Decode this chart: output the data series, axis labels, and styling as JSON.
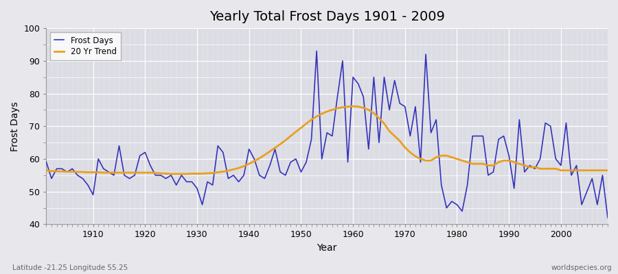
{
  "title": "Yearly Total Frost Days 1901 - 2009",
  "xlabel": "Year",
  "ylabel": "Frost Days",
  "subtitle": "Latitude -21.25 Longitude 55.25",
  "watermark": "worldspecies.org",
  "years": [
    1901,
    1902,
    1903,
    1904,
    1905,
    1906,
    1907,
    1908,
    1909,
    1910,
    1911,
    1912,
    1913,
    1914,
    1915,
    1916,
    1917,
    1918,
    1919,
    1920,
    1921,
    1922,
    1923,
    1924,
    1925,
    1926,
    1927,
    1928,
    1929,
    1930,
    1931,
    1932,
    1933,
    1934,
    1935,
    1936,
    1937,
    1938,
    1939,
    1940,
    1941,
    1942,
    1943,
    1944,
    1945,
    1946,
    1947,
    1948,
    1949,
    1950,
    1951,
    1952,
    1953,
    1954,
    1955,
    1956,
    1957,
    1958,
    1959,
    1960,
    1961,
    1962,
    1963,
    1964,
    1965,
    1966,
    1967,
    1968,
    1969,
    1970,
    1971,
    1972,
    1973,
    1974,
    1975,
    1976,
    1977,
    1978,
    1979,
    1980,
    1981,
    1982,
    1983,
    1984,
    1985,
    1986,
    1987,
    1988,
    1989,
    1990,
    1991,
    1992,
    1993,
    1994,
    1995,
    1996,
    1997,
    1998,
    1999,
    2000,
    2001,
    2002,
    2003,
    2004,
    2005,
    2006,
    2007,
    2008,
    2009
  ],
  "frost_days": [
    59,
    54,
    57,
    57,
    56,
    57,
    55,
    54,
    52,
    49,
    60,
    57,
    56,
    55,
    64,
    55,
    54,
    55,
    61,
    62,
    58,
    55,
    55,
    54,
    55,
    52,
    55,
    53,
    53,
    51,
    46,
    53,
    52,
    64,
    62,
    54,
    55,
    53,
    55,
    63,
    60,
    55,
    54,
    58,
    63,
    56,
    55,
    59,
    60,
    56,
    59,
    66,
    93,
    60,
    68,
    67,
    79,
    90,
    59,
    85,
    83,
    79,
    63,
    85,
    65,
    85,
    75,
    84,
    77,
    76,
    67,
    76,
    59,
    92,
    68,
    72,
    52,
    45,
    47,
    46,
    44,
    52,
    67,
    67,
    67,
    55,
    56,
    66,
    67,
    61,
    51,
    72,
    56,
    58,
    57,
    60,
    71,
    70,
    60,
    58,
    71,
    55,
    58,
    46,
    50,
    54,
    46,
    55,
    42
  ],
  "trend_values": [
    56.5,
    56.3,
    56.2,
    56.2,
    56.1,
    56.1,
    56.0,
    56.0,
    55.9,
    55.9,
    55.9,
    55.8,
    55.8,
    55.8,
    55.8,
    55.8,
    55.8,
    55.8,
    55.8,
    55.8,
    55.8,
    55.7,
    55.6,
    55.5,
    55.4,
    55.4,
    55.4,
    55.4,
    55.5,
    55.5,
    55.5,
    55.6,
    55.7,
    55.9,
    56.1,
    56.4,
    56.8,
    57.2,
    57.8,
    58.5,
    59.3,
    60.2,
    61.2,
    62.3,
    63.4,
    64.5,
    65.7,
    67.0,
    68.3,
    69.5,
    70.8,
    72.0,
    73.0,
    73.8,
    74.5,
    75.0,
    75.5,
    75.8,
    76.0,
    76.1,
    76.0,
    75.6,
    75.0,
    74.0,
    72.5,
    70.8,
    68.5,
    67.0,
    65.5,
    63.5,
    62.0,
    60.8,
    60.0,
    59.5,
    59.5,
    60.5,
    61.0,
    61.0,
    60.5,
    60.0,
    59.5,
    59.0,
    58.5,
    58.5,
    58.5,
    58.0,
    58.0,
    59.0,
    59.5,
    59.5,
    59.0,
    58.5,
    58.0,
    57.5,
    57.5,
    57.0,
    57.0,
    57.0,
    57.0,
    56.5,
    56.5,
    56.5,
    56.5,
    56.5,
    56.5,
    56.5,
    56.5,
    56.5,
    56.5
  ],
  "frost_color": "#3333bb",
  "trend_color": "#e8a020",
  "bg_color": "#e8e8ec",
  "plot_bg": "#dcdce4",
  "ylim": [
    40,
    100
  ],
  "xlim": [
    1901,
    2009
  ],
  "yticks": [
    40,
    50,
    60,
    70,
    80,
    90,
    100
  ],
  "xticks": [
    1910,
    1920,
    1930,
    1940,
    1950,
    1960,
    1970,
    1980,
    1990,
    2000
  ],
  "title_fontsize": 14,
  "label_fontsize": 10,
  "tick_fontsize": 9
}
